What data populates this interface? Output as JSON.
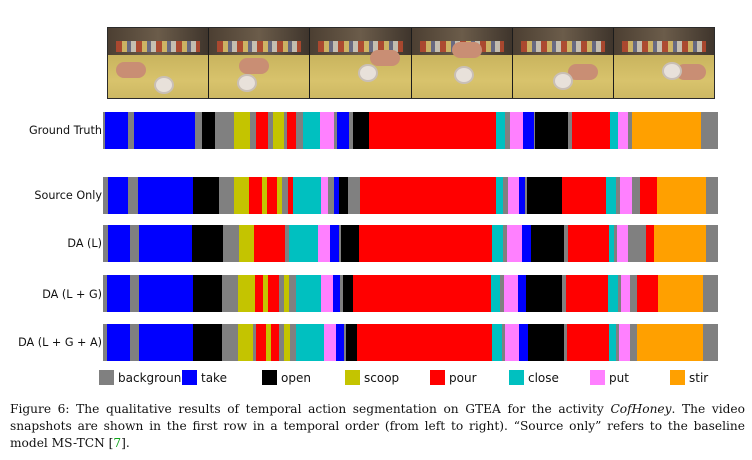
{
  "figure": {
    "rows": [
      {
        "label": "Ground Truth"
      },
      {
        "label": "Source Only"
      },
      {
        "label": "DA (L)"
      },
      {
        "label": "DA (L + G)"
      },
      {
        "label": "DA (L + G + A)"
      }
    ],
    "legend": [
      {
        "label": "background",
        "color": "#808080"
      },
      {
        "label": "take",
        "color": "#0000ff"
      },
      {
        "label": "open",
        "color": "#000000"
      },
      {
        "label": "scoop",
        "color": "#c4c400"
      },
      {
        "label": "pour",
        "color": "#ff0000"
      },
      {
        "label": "close",
        "color": "#00c0c0"
      },
      {
        "label": "put",
        "color": "#ff80ff"
      },
      {
        "label": "stir",
        "color": "#ffa000"
      }
    ],
    "caption": {
      "prefix": "Figure 6: The qualitative results of temporal action segmentation on GTEA for the activity ",
      "activity": "CofHoney",
      "middle": ". The video snapshots are shown in the first row in a temporal order (from left to right). “Source only” refers to the baseline model MS-TCN [",
      "ref": "7",
      "suffix": "]."
    }
  }
}
